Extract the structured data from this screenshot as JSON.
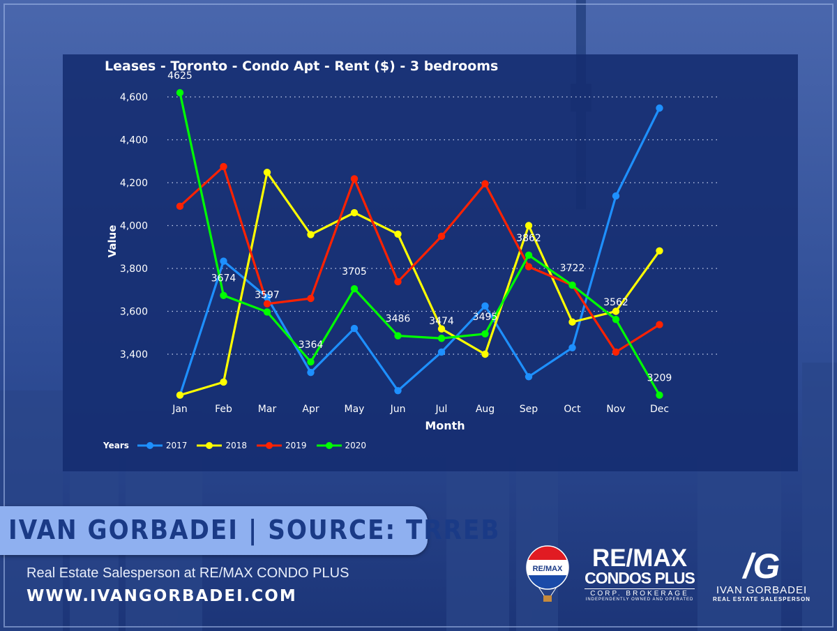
{
  "chart_data": {
    "type": "line",
    "title": "Leases - Toronto - Condo Apt - Rent ($) - 3 bedrooms",
    "xlabel": "Month",
    "ylabel": "Value",
    "categories": [
      "Jan",
      "Feb",
      "Mar",
      "Apr",
      "May",
      "Jun",
      "Jul",
      "Aug",
      "Sep",
      "Oct",
      "Nov",
      "Dec"
    ],
    "yticks": [
      "3,400",
      "3,600",
      "3,800",
      "4,000",
      "4,200",
      "4,400",
      "4,600"
    ],
    "ylim": [
      3209,
      4625
    ],
    "grid": "horizontal dotted",
    "legend_title": "Years",
    "legend_position": "bottom-left",
    "series": [
      {
        "name": "2017",
        "color": "#1e90ff",
        "values": [
          3209,
          3834,
          3665,
          3315,
          3520,
          3230,
          3410,
          3625,
          3295,
          3430,
          4138,
          4548
        ]
      },
      {
        "name": "2018",
        "color": "#ffff00",
        "values": [
          3209,
          3270,
          4248,
          3958,
          4060,
          3960,
          3518,
          3400,
          4000,
          3550,
          3600,
          3882
        ]
      },
      {
        "name": "2019",
        "color": "#ff2200",
        "values": [
          4090,
          4275,
          3635,
          3660,
          4218,
          3738,
          3950,
          4195,
          3808,
          3722,
          3410,
          3538
        ]
      },
      {
        "name": "2020",
        "color": "#00ff00",
        "values": [
          4625,
          3674,
          3597,
          3364,
          3705,
          3486,
          3474,
          3495,
          3862,
          3722,
          3562,
          3209
        ]
      }
    ],
    "data_labels_series": "2020",
    "data_labels": [
      "4625",
      "3674",
      "3597",
      "3364",
      "3705",
      "3486",
      "3474",
      "3495",
      "3862",
      "3722",
      "3562",
      "3209"
    ]
  },
  "footer": {
    "banner": "IVAN GORBADEI  |  SOURCE: TRREB",
    "role": "Real Estate Salesperson at RE/MAX CONDO PLUS",
    "website": "WWW.IVANGORBADEI.COM"
  },
  "logos": {
    "balloon_text": "RE/MAX",
    "remax_line1": "RE/MAX",
    "remax_line2": "CONDOS PLUS",
    "remax_line3": "CORP. BROKERAGE",
    "remax_line4": "INDEPENDENTLY OWNED AND OPERATED",
    "ig_monogram": "/G",
    "ig_name": "IVAN GORBADEI",
    "ig_role": "REAL ESTATE SALESPERSON"
  }
}
